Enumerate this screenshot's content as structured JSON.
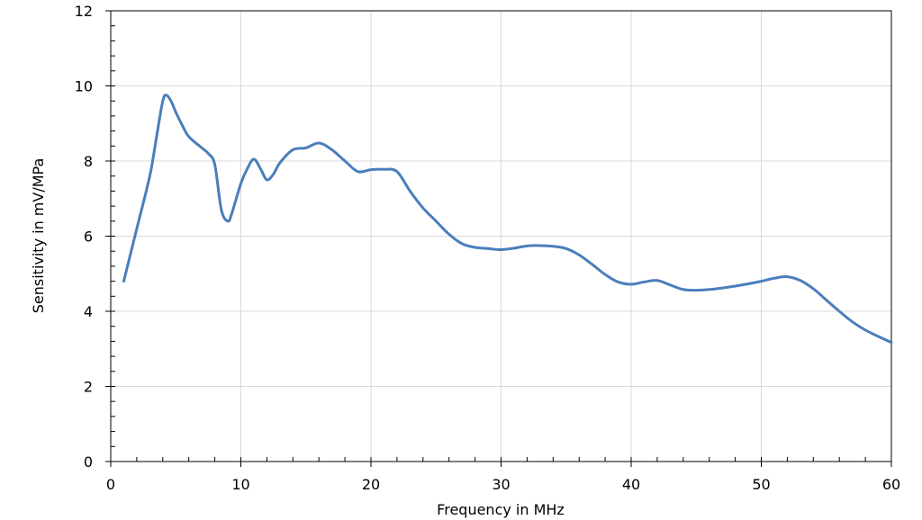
{
  "chart_data": {
    "type": "line",
    "title": "",
    "xlabel": "Frequency in MHz",
    "ylabel": "Sensitivity in mV/MPa",
    "xlim": [
      0,
      60
    ],
    "ylim": [
      0,
      12
    ],
    "x_ticks": [
      0,
      10,
      20,
      30,
      40,
      50,
      60
    ],
    "y_ticks": [
      0,
      2,
      4,
      6,
      8,
      10,
      12
    ],
    "x_minor_step": 2,
    "y_minor_step": 0.4,
    "grid": true,
    "legend": "none",
    "line_color": "#4a7ebb",
    "series": [
      {
        "x": [
          1,
          2,
          3,
          3.5,
          4,
          4.3,
          4.7,
          5,
          5.5,
          6,
          7,
          7.5,
          8,
          8.5,
          9,
          9.3,
          10,
          10.5,
          11,
          11.5,
          12,
          12.5,
          13,
          14,
          15,
          16,
          17,
          18,
          19,
          20,
          21,
          22,
          23,
          24,
          25,
          26,
          27,
          28,
          29,
          30,
          31,
          32,
          33,
          34,
          35,
          36,
          37,
          38,
          39,
          40,
          41,
          42,
          43,
          44,
          45,
          46,
          47,
          48,
          49,
          50,
          51,
          52,
          53,
          54,
          55,
          56,
          57,
          58,
          59,
          60
        ],
        "y": [
          4.8,
          6.2,
          7.6,
          8.6,
          9.6,
          9.75,
          9.55,
          9.3,
          8.95,
          8.65,
          8.35,
          8.2,
          7.9,
          6.7,
          6.4,
          6.6,
          7.4,
          7.8,
          8.05,
          7.8,
          7.5,
          7.65,
          7.95,
          8.3,
          8.35,
          8.48,
          8.3,
          8.0,
          7.72,
          7.77,
          7.78,
          7.72,
          7.2,
          6.75,
          6.4,
          6.05,
          5.8,
          5.7,
          5.67,
          5.64,
          5.68,
          5.74,
          5.75,
          5.73,
          5.67,
          5.5,
          5.25,
          4.98,
          4.78,
          4.72,
          4.78,
          4.82,
          4.7,
          4.58,
          4.56,
          4.58,
          4.62,
          4.67,
          4.73,
          4.8,
          4.88,
          4.92,
          4.82,
          4.6,
          4.3,
          4.0,
          3.72,
          3.5,
          3.33,
          3.17
        ]
      }
    ]
  }
}
